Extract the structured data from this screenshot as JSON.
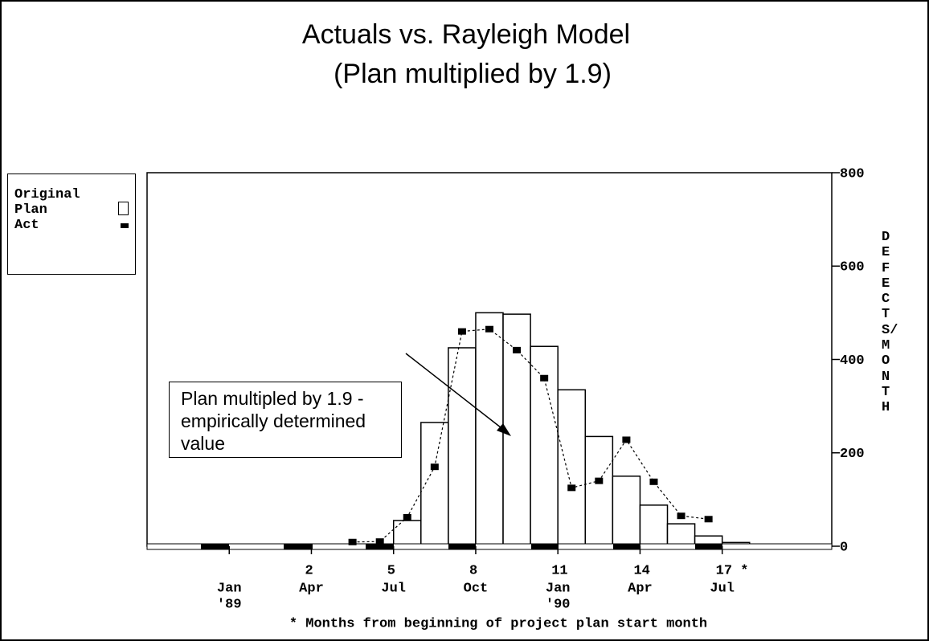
{
  "chart_data": {
    "type": "bar",
    "title": "Actuals vs. Rayleigh Model",
    "subtitle": "(Plan multiplied by 1.9)",
    "xlabel": "* Months from beginning of project plan start month",
    "ylabel": "DEFECTS/MONTH",
    "annotation": "Plan multipled by 1.9 - empirically determined value",
    "series": [
      {
        "name": "Original Plan",
        "color": "#ffffff",
        "x": [
          5,
          6,
          7,
          8,
          9,
          10,
          11,
          12,
          13,
          14,
          15,
          16,
          17,
          18
        ],
        "values": [
          55,
          265,
          425,
          500,
          497,
          428,
          335,
          235,
          150,
          88,
          48,
          22,
          8,
          3
        ]
      },
      {
        "name": "Act",
        "color": "#000000",
        "x": [
          3.5,
          4.5,
          5.5,
          6.5,
          7.5,
          8.5,
          9.5,
          10.5,
          11.5,
          12.5,
          13.5,
          14.5,
          15.5,
          16.5
        ],
        "values": [
          9,
          10,
          62,
          170,
          460,
          465,
          420,
          360,
          125,
          140,
          228,
          138,
          65,
          58
        ]
      }
    ],
    "xlim": [
      -4,
      21
    ],
    "xticks": [
      2,
      5,
      8,
      11,
      14,
      {
        "value": 17,
        "label": "17 *"
      }
    ],
    "date_labels": [
      {
        "value": -1,
        "month": "Jan",
        "year": "'89"
      },
      {
        "value": 2,
        "month": "Apr"
      },
      {
        "value": 5,
        "month": "Jul"
      },
      {
        "value": 8,
        "month": "Oct"
      },
      {
        "value": 11,
        "month": "Jan",
        "year": "'90"
      },
      {
        "value": 14,
        "month": "Apr"
      },
      {
        "value": 17,
        "month": "Jul"
      }
    ],
    "ylim": [
      0,
      800
    ],
    "yticks": [
      0,
      200,
      400,
      600,
      800
    ]
  }
}
